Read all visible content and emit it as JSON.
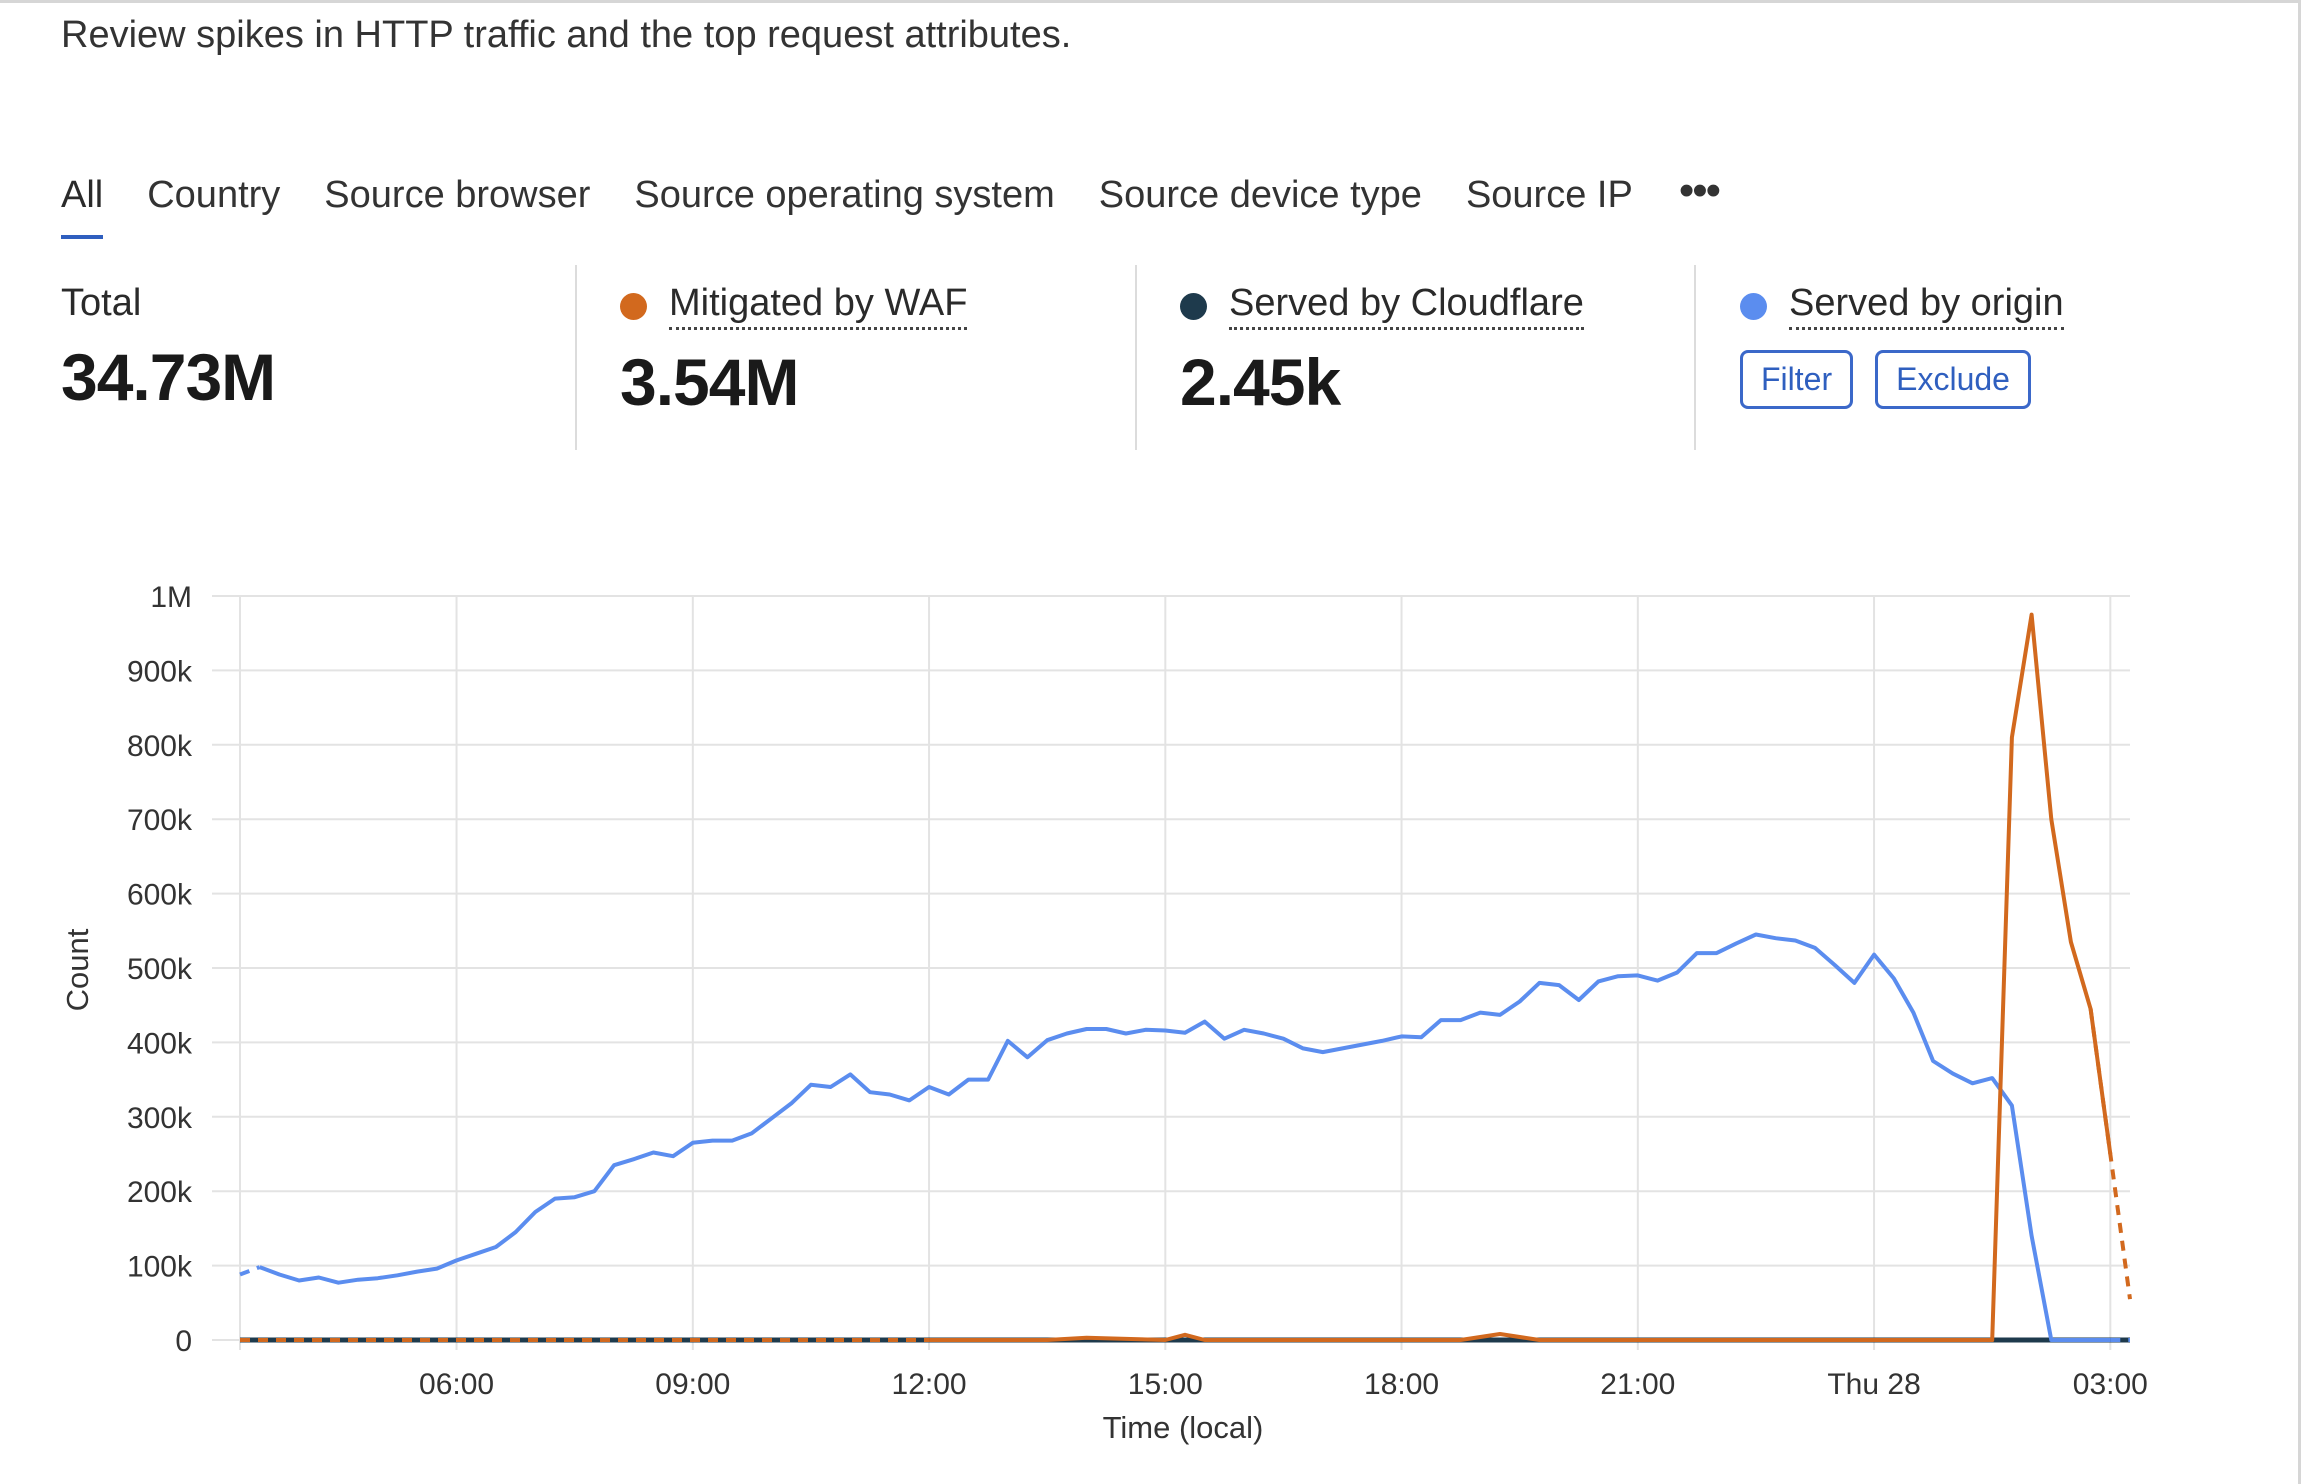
{
  "description": "Review spikes in HTTP traffic and the top request attributes.",
  "tabs": [
    "All",
    "Country",
    "Source browser",
    "Source operating system",
    "Source device type",
    "Source IP"
  ],
  "more_icon": "ellipsis-icon",
  "stats": {
    "total": {
      "label": "Total",
      "value": "34.73M"
    },
    "waf": {
      "label": "Mitigated by WAF",
      "value": "3.54M",
      "color": "#d2691e"
    },
    "cloudflare": {
      "label": "Served by Cloudflare",
      "value": "2.45k",
      "color": "#1e3a4c"
    },
    "origin": {
      "label": "Served by origin",
      "color": "#5b8def",
      "filter_label": "Filter",
      "exclude_label": "Exclude"
    }
  },
  "chart_data": {
    "type": "line",
    "title": "",
    "xlabel": "Time (local)",
    "ylabel": "Count",
    "ylim": [
      0,
      1000000
    ],
    "y_ticks": [
      0,
      100000,
      200000,
      300000,
      400000,
      500000,
      600000,
      700000,
      800000,
      900000,
      1000000
    ],
    "y_tick_labels": [
      "0",
      "100k",
      "200k",
      "300k",
      "400k",
      "500k",
      "600k",
      "700k",
      "800k",
      "900k",
      "1M"
    ],
    "x_range_hours": [
      3.25,
      27.25
    ],
    "x_ticks": [
      6,
      9,
      12,
      15,
      18,
      21,
      24,
      27
    ],
    "x_tick_labels": [
      "06:00",
      "09:00",
      "12:00",
      "15:00",
      "18:00",
      "21:00",
      "Thu 28",
      "03:00"
    ],
    "grid": true,
    "series": [
      {
        "name": "Served by origin",
        "color": "#5b8def",
        "x": [
          3.25,
          3.5,
          3.75,
          4.0,
          4.25,
          4.5,
          4.75,
          5.0,
          5.25,
          5.5,
          5.75,
          6.0,
          6.25,
          6.5,
          6.75,
          7.0,
          7.25,
          7.5,
          7.75,
          8.0,
          8.25,
          8.5,
          8.75,
          9.0,
          9.25,
          9.5,
          9.75,
          10.0,
          10.25,
          10.5,
          10.75,
          11.0,
          11.25,
          11.5,
          11.75,
          12.0,
          12.25,
          12.5,
          12.75,
          13.0,
          13.25,
          13.5,
          13.75,
          14.0,
          14.25,
          14.5,
          14.75,
          15.0,
          15.25,
          15.5,
          15.75,
          16.0,
          16.25,
          16.5,
          16.75,
          17.0,
          17.25,
          17.5,
          17.75,
          18.0,
          18.25,
          18.5,
          18.75,
          19.0,
          19.25,
          19.5,
          19.75,
          20.0,
          20.25,
          20.5,
          20.75,
          21.0,
          21.25,
          21.5,
          21.75,
          22.0,
          22.25,
          22.5,
          22.75,
          23.0,
          23.25,
          23.5,
          23.75,
          24.0,
          24.25,
          24.5,
          24.75,
          25.0,
          25.25,
          25.5,
          25.75,
          26.0,
          26.25,
          26.5,
          26.75,
          27.0,
          27.25
        ],
        "y": [
          88000,
          98000,
          88000,
          80000,
          84000,
          77000,
          81000,
          83000,
          87000,
          92000,
          96000,
          107000,
          116000,
          125000,
          145000,
          172000,
          190000,
          192000,
          200000,
          235000,
          243000,
          252000,
          247000,
          265000,
          268000,
          268000,
          278000,
          298000,
          318000,
          343000,
          340000,
          357000,
          333000,
          330000,
          322000,
          340000,
          330000,
          350000,
          350000,
          402000,
          380000,
          403000,
          412000,
          418000,
          418000,
          412000,
          417000,
          416000,
          413000,
          428000,
          405000,
          417000,
          412000,
          405000,
          392000,
          387000,
          392000,
          397000,
          402000,
          408000,
          407000,
          430000,
          430000,
          440000,
          437000,
          455000,
          480000,
          477000,
          457000,
          482000,
          489000,
          490000,
          483000,
          494000,
          520000,
          520000,
          533000,
          545000,
          540000,
          537000,
          527000,
          504000,
          480000,
          518000,
          486000,
          440000,
          375000,
          358000,
          345000,
          352000,
          315000,
          140000,
          0,
          0,
          0,
          0,
          0
        ]
      },
      {
        "name": "Mitigated by WAF",
        "color": "#d2691e",
        "x": [
          3.25,
          12.0,
          13.5,
          14.0,
          15.0,
          15.25,
          15.5,
          18.75,
          19.25,
          19.75,
          24.0,
          25.0,
          25.5,
          25.75,
          26.0,
          26.25,
          26.5,
          26.75,
          27.0,
          27.25
        ],
        "y": [
          0,
          0,
          0,
          3000,
          0,
          7000,
          0,
          0,
          8000,
          0,
          0,
          0,
          0,
          810000,
          975000,
          700000,
          535000,
          445000,
          250000,
          55000
        ]
      },
      {
        "name": "Served by Cloudflare",
        "color": "#1e3a4c",
        "x": [
          3.25,
          27.25
        ],
        "y": [
          0,
          0
        ]
      }
    ]
  }
}
